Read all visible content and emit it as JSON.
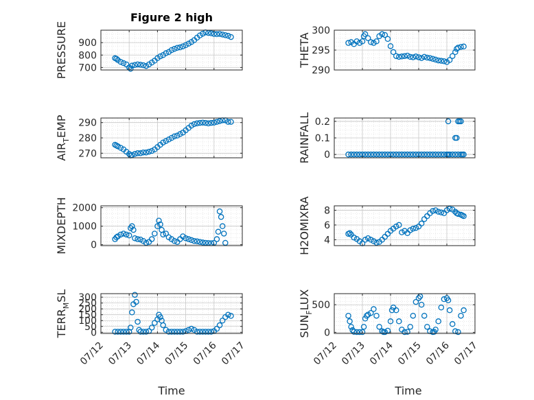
{
  "figure": {
    "title": "Figure 2 high",
    "xlabel": "Time"
  },
  "colors": {
    "marker": "#0072BD",
    "axis": "#262626",
    "grid": "#c8c8c8"
  },
  "chart_data": [
    {
      "id": "pressure",
      "type": "scatter",
      "title": "Figure 2 high",
      "ylabel": "PRESSURE",
      "ylabel_main": "PRESSURE",
      "ylabel_sub": "",
      "ylabel_rest": "",
      "xlim": [
        0,
        5
      ],
      "ylim": [
        680,
        1000
      ],
      "yticks": [
        700,
        800,
        900
      ],
      "yticklabels": [
        "700",
        "800",
        "900"
      ],
      "x_ticklabels": [],
      "grid": true,
      "x": [
        0.5,
        0.55,
        0.6,
        0.7,
        0.8,
        0.9,
        1.0,
        1.05,
        1.1,
        1.2,
        1.3,
        1.4,
        1.5,
        1.6,
        1.7,
        1.8,
        1.9,
        2.0,
        2.1,
        2.2,
        2.3,
        2.4,
        2.5,
        2.6,
        2.7,
        2.8,
        2.9,
        3.0,
        3.1,
        3.2,
        3.3,
        3.4,
        3.5,
        3.6,
        3.7,
        3.8,
        3.9,
        4.0,
        4.1,
        4.2,
        4.3,
        4.4,
        4.5,
        4.6
      ],
      "y": [
        775,
        770,
        760,
        745,
        735,
        725,
        700,
        690,
        715,
        720,
        725,
        722,
        718,
        712,
        725,
        740,
        755,
        775,
        790,
        800,
        815,
        825,
        840,
        850,
        858,
        862,
        870,
        880,
        892,
        905,
        920,
        940,
        958,
        972,
        982,
        978,
        975,
        970,
        968,
        970,
        965,
        960,
        955,
        945
      ]
    },
    {
      "id": "theta",
      "type": "scatter",
      "ylabel": "THETA",
      "ylabel_main": "THETA",
      "ylabel_sub": "",
      "ylabel_rest": "",
      "xlim": [
        0,
        5
      ],
      "ylim": [
        290,
        300
      ],
      "yticks": [
        290,
        295,
        300
      ],
      "yticklabels": [
        "290",
        "295",
        "300"
      ],
      "x_ticklabels": [],
      "grid": true,
      "x": [
        0.5,
        0.6,
        0.7,
        0.8,
        0.9,
        1.0,
        1.05,
        1.1,
        1.2,
        1.3,
        1.4,
        1.5,
        1.6,
        1.7,
        1.8,
        1.9,
        2.0,
        2.1,
        2.2,
        2.3,
        2.4,
        2.5,
        2.6,
        2.7,
        2.8,
        2.9,
        3.0,
        3.1,
        3.2,
        3.3,
        3.4,
        3.5,
        3.6,
        3.7,
        3.8,
        3.9,
        4.0,
        4.1,
        4.2,
        4.3,
        4.35,
        4.4,
        4.5,
        4.6
      ],
      "y": [
        296.8,
        297.0,
        296.5,
        297.2,
        296.8,
        297.2,
        298.5,
        299.0,
        298.0,
        297.0,
        296.8,
        297.2,
        298.5,
        299.0,
        298.8,
        297.8,
        296.0,
        294.5,
        293.5,
        293.3,
        293.4,
        293.5,
        293.6,
        293.3,
        293.2,
        293.4,
        293.2,
        293.0,
        293.3,
        293.1,
        293.0,
        292.8,
        292.6,
        292.4,
        292.3,
        292.2,
        292.0,
        292.5,
        293.5,
        294.5,
        295.3,
        295.6,
        295.8,
        295.9
      ]
    },
    {
      "id": "airtemp",
      "type": "scatter",
      "ylabel": "AIR_TEMP",
      "ylabel_main": "AIR",
      "ylabel_sub": "T",
      "ylabel_rest": "EMP",
      "xlim": [
        0,
        5
      ],
      "ylim": [
        267,
        293
      ],
      "yticks": [
        270,
        280,
        290
      ],
      "yticklabels": [
        "270",
        "280",
        "290"
      ],
      "x_ticklabels": [],
      "grid": true,
      "x": [
        0.5,
        0.55,
        0.6,
        0.7,
        0.8,
        0.9,
        1.0,
        1.05,
        1.1,
        1.2,
        1.3,
        1.4,
        1.5,
        1.6,
        1.7,
        1.8,
        1.9,
        2.0,
        2.1,
        2.2,
        2.3,
        2.4,
        2.5,
        2.6,
        2.7,
        2.8,
        2.9,
        3.0,
        3.1,
        3.2,
        3.3,
        3.4,
        3.5,
        3.6,
        3.7,
        3.8,
        3.9,
        4.0,
        4.1,
        4.2,
        4.3,
        4.4,
        4.5,
        4.6
      ],
      "y": [
        275.5,
        275,
        274.5,
        273.5,
        272.5,
        271,
        269.5,
        268.5,
        268.8,
        269.5,
        270,
        270,
        270.5,
        270.5,
        271,
        271.5,
        272.5,
        274,
        275.5,
        277,
        278,
        279,
        280,
        281,
        281.5,
        282.5,
        283.5,
        285,
        286.5,
        288,
        289,
        289.5,
        289.8,
        290,
        289.8,
        289.5,
        289.8,
        290,
        290.5,
        291,
        291.5,
        291.5,
        290.5,
        290.5
      ]
    },
    {
      "id": "rainfall",
      "type": "scatter",
      "ylabel": "RAINFALL",
      "ylabel_main": "RAINFALL",
      "ylabel_sub": "",
      "ylabel_rest": "",
      "xlim": [
        0,
        5
      ],
      "ylim": [
        -0.02,
        0.22
      ],
      "yticks": [
        0,
        0.1,
        0.2
      ],
      "yticklabels": [
        "0",
        "0.1",
        "0.2"
      ],
      "x_ticklabels": [],
      "grid": true,
      "x": [
        0.5,
        0.6,
        0.7,
        0.8,
        0.9,
        1.0,
        1.1,
        1.2,
        1.3,
        1.4,
        1.5,
        1.6,
        1.7,
        1.8,
        1.9,
        2.0,
        2.1,
        2.2,
        2.3,
        2.4,
        2.5,
        2.6,
        2.7,
        2.8,
        2.9,
        3.0,
        3.1,
        3.2,
        3.3,
        3.4,
        3.5,
        3.6,
        3.7,
        3.8,
        3.9,
        4.0,
        4.05,
        4.1,
        4.2,
        4.3,
        4.4,
        4.5,
        4.55,
        4.6,
        4.3,
        4.35,
        4.05,
        4.4,
        4.45,
        4.5
      ],
      "y": [
        0,
        0,
        0,
        0,
        0,
        0,
        0,
        0,
        0,
        0,
        0,
        0,
        0,
        0,
        0,
        0,
        0,
        0,
        0,
        0,
        0,
        0,
        0,
        0,
        0,
        0,
        0,
        0,
        0,
        0,
        0,
        0,
        0,
        0,
        0,
        0,
        0,
        0,
        0,
        0,
        0,
        0,
        0,
        0,
        0.1,
        0.1,
        0.2,
        0.2,
        0.2,
        0.2
      ]
    },
    {
      "id": "mixdepth",
      "type": "scatter",
      "ylabel": "MIXDEPTH",
      "ylabel_main": "MIXDEPTH",
      "ylabel_sub": "",
      "ylabel_rest": "",
      "xlim": [
        0,
        5
      ],
      "ylim": [
        -50,
        2100
      ],
      "yticks": [
        0,
        1000,
        2000
      ],
      "yticklabels": [
        "0",
        "1000",
        "2000"
      ],
      "x_ticklabels": [],
      "grid": true,
      "x": [
        0.5,
        0.55,
        0.6,
        0.7,
        0.8,
        0.9,
        1.0,
        1.05,
        1.1,
        1.15,
        1.2,
        1.3,
        1.4,
        1.5,
        1.6,
        1.7,
        1.8,
        1.9,
        2.0,
        2.05,
        2.1,
        2.15,
        2.2,
        2.3,
        2.4,
        2.5,
        2.6,
        2.7,
        2.8,
        2.9,
        3.0,
        3.1,
        3.2,
        3.3,
        3.4,
        3.5,
        3.6,
        3.7,
        3.8,
        3.9,
        4.0,
        4.1,
        4.15,
        4.2,
        4.25,
        4.3,
        4.35,
        4.4
      ],
      "y": [
        300,
        400,
        450,
        550,
        600,
        550,
        500,
        900,
        1000,
        800,
        350,
        300,
        280,
        200,
        100,
        150,
        300,
        600,
        1000,
        1300,
        1100,
        800,
        550,
        600,
        400,
        300,
        200,
        150,
        300,
        450,
        350,
        300,
        250,
        200,
        180,
        150,
        120,
        100,
        90,
        80,
        100,
        300,
        700,
        1800,
        1500,
        1000,
        600,
        100
      ]
    },
    {
      "id": "h2omixra",
      "type": "scatter",
      "ylabel": "H2OMIXRA",
      "ylabel_main": "H2OMIXRA",
      "ylabel_sub": "",
      "ylabel_rest": "",
      "xlim": [
        0,
        5
      ],
      "ylim": [
        3.2,
        8.6
      ],
      "yticks": [
        4,
        6,
        8
      ],
      "yticklabels": [
        "4",
        "6",
        "8"
      ],
      "x_ticklabels": [],
      "grid": true,
      "x": [
        0.5,
        0.55,
        0.6,
        0.7,
        0.8,
        0.9,
        1.0,
        1.1,
        1.2,
        1.3,
        1.4,
        1.5,
        1.6,
        1.7,
        1.8,
        1.9,
        2.0,
        2.1,
        2.2,
        2.3,
        2.4,
        2.5,
        2.6,
        2.7,
        2.8,
        2.9,
        3.0,
        3.1,
        3.2,
        3.3,
        3.4,
        3.5,
        3.6,
        3.7,
        3.8,
        3.9,
        4.0,
        4.1,
        4.2,
        4.3,
        4.35,
        4.4,
        4.5,
        4.55,
        4.6
      ],
      "y": [
        4.8,
        4.9,
        4.7,
        4.3,
        4.1,
        3.8,
        3.5,
        4.0,
        4.2,
        4.0,
        3.8,
        3.6,
        3.7,
        4.0,
        4.4,
        4.8,
        5.2,
        5.5,
        5.8,
        6.0,
        5.0,
        5.2,
        4.9,
        5.3,
        5.5,
        5.6,
        5.8,
        6.2,
        6.8,
        7.2,
        7.6,
        7.9,
        8.0,
        7.8,
        7.7,
        7.6,
        8.0,
        8.2,
        8.1,
        7.8,
        7.6,
        7.5,
        7.4,
        7.3,
        7.2
      ]
    },
    {
      "id": "terrmsl",
      "type": "scatter",
      "ylabel": "TERR_MSL",
      "ylabel_main": "TERR",
      "ylabel_sub": "M",
      "ylabel_rest": "SL",
      "xlim": [
        0,
        5
      ],
      "ylim": [
        -10,
        330
      ],
      "yticks": [
        0,
        50,
        100,
        150,
        200,
        250,
        300
      ],
      "yticklabels": [
        "0",
        "50",
        "100",
        "150",
        "200",
        "250",
        "300"
      ],
      "x_ticklabels": [
        "07/12",
        "07/13",
        "07/14",
        "07/15",
        "07/16",
        "07/17"
      ],
      "grid": true,
      "x": [
        0.5,
        0.6,
        0.7,
        0.8,
        0.9,
        1.0,
        1.05,
        1.1,
        1.15,
        1.2,
        1.25,
        1.3,
        1.35,
        1.4,
        1.5,
        1.6,
        1.7,
        1.8,
        1.9,
        2.0,
        2.05,
        2.1,
        2.15,
        2.2,
        2.3,
        2.4,
        2.5,
        2.6,
        2.7,
        2.8,
        2.9,
        3.0,
        3.1,
        3.2,
        3.3,
        3.4,
        3.5,
        3.6,
        3.7,
        3.8,
        3.9,
        4.0,
        4.1,
        4.2,
        4.3,
        4.4,
        4.5,
        4.6
      ],
      "y": [
        5,
        5,
        5,
        5,
        5,
        5,
        40,
        170,
        240,
        320,
        260,
        90,
        20,
        5,
        5,
        5,
        10,
        40,
        80,
        110,
        150,
        130,
        100,
        60,
        20,
        5,
        5,
        5,
        5,
        5,
        5,
        10,
        20,
        30,
        20,
        5,
        5,
        5,
        5,
        5,
        5,
        10,
        30,
        60,
        100,
        130,
        150,
        140
      ]
    },
    {
      "id": "sunflux",
      "type": "scatter",
      "ylabel": "SUN_FLUX",
      "ylabel_main": "SUN",
      "ylabel_sub": "F",
      "ylabel_rest": "LUX",
      "xlim": [
        0,
        5
      ],
      "ylim": [
        -20,
        700
      ],
      "yticks": [
        0,
        500
      ],
      "yticklabels": [
        "0",
        "500"
      ],
      "x_ticklabels": [
        "07/12",
        "07/13",
        "07/14",
        "07/15",
        "07/16",
        "07/17"
      ],
      "grid": true,
      "x": [
        0.5,
        0.55,
        0.6,
        0.65,
        0.7,
        0.8,
        0.9,
        1.0,
        1.05,
        1.1,
        1.15,
        1.2,
        1.3,
        1.4,
        1.5,
        1.6,
        1.7,
        1.75,
        1.8,
        1.9,
        2.0,
        2.05,
        2.1,
        2.2,
        2.3,
        2.4,
        2.5,
        2.6,
        2.7,
        2.8,
        2.9,
        3.0,
        3.05,
        3.1,
        3.2,
        3.3,
        3.4,
        3.5,
        3.55,
        3.6,
        3.7,
        3.8,
        3.9,
        4.0,
        4.05,
        4.1,
        4.2,
        4.3,
        4.4,
        4.5,
        4.6
      ],
      "y": [
        300,
        200,
        100,
        40,
        10,
        5,
        5,
        5,
        100,
        250,
        300,
        320,
        350,
        420,
        300,
        100,
        20,
        5,
        5,
        30,
        200,
        400,
        450,
        400,
        200,
        50,
        5,
        10,
        100,
        300,
        550,
        620,
        650,
        500,
        300,
        100,
        20,
        5,
        10,
        50,
        200,
        450,
        600,
        620,
        580,
        400,
        150,
        20,
        5,
        300,
        400
      ]
    }
  ]
}
